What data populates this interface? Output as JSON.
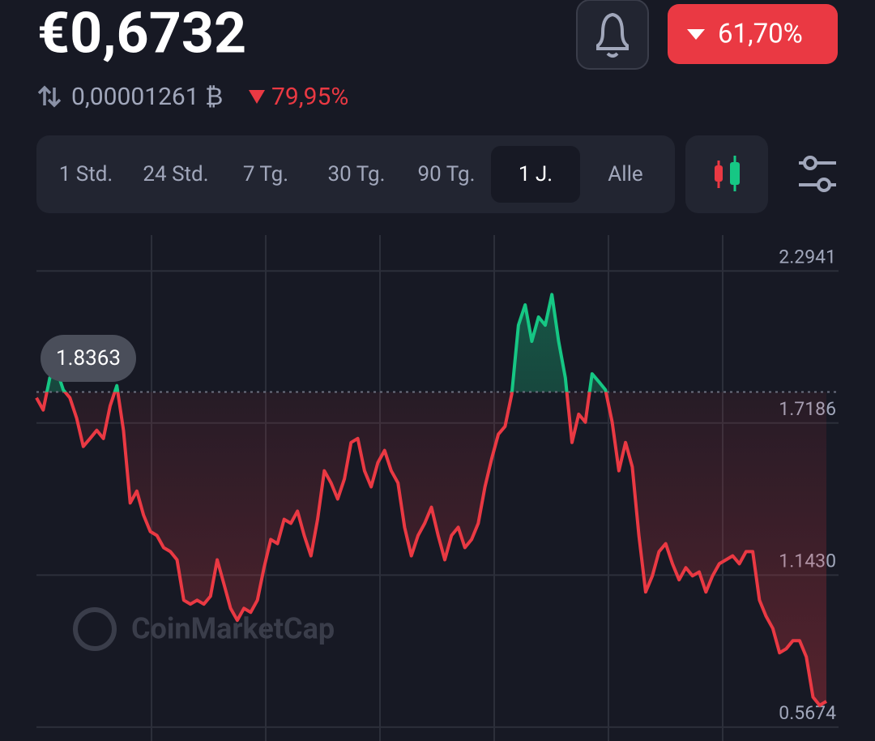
{
  "header": {
    "price": "€0,6732",
    "change": "61,70%",
    "btc_price": "0,00001261 ₿",
    "btc_change": "79,95%"
  },
  "tabs": [
    "1 Std.",
    "24 Std.",
    "7 Tg.",
    "30 Tg.",
    "90 Tg.",
    "1 J.",
    "Alle"
  ],
  "active_tab": 5,
  "chart_data": {
    "type": "line",
    "watermark": "CoinMarketCap",
    "baseline": 1.8363,
    "up_color": "#16c784",
    "down_color": "#ea3943",
    "values": [
      1.814,
      1.768,
      1.89,
      1.921,
      1.844,
      1.814,
      1.737,
      1.63,
      1.66,
      1.691,
      1.66,
      1.783,
      1.86,
      1.691,
      1.416,
      1.461,
      1.37,
      1.308,
      1.293,
      1.247,
      1.232,
      1.201,
      1.048,
      1.033,
      1.048,
      1.033,
      1.063,
      1.201,
      1.109,
      1.017,
      0.972,
      1.017,
      1.002,
      1.048,
      1.171,
      1.278,
      1.262,
      1.354,
      1.339,
      1.385,
      1.293,
      1.216,
      1.354,
      1.538,
      1.492,
      1.431,
      1.507,
      1.645,
      1.66,
      1.538,
      1.477,
      1.569,
      1.615,
      1.538,
      1.492,
      1.324,
      1.216,
      1.293,
      1.339,
      1.4,
      1.293,
      1.201,
      1.293,
      1.324,
      1.247,
      1.278,
      1.339,
      1.477,
      1.584,
      1.676,
      1.706,
      1.829,
      2.089,
      2.166,
      2.028,
      2.12,
      2.089,
      2.205,
      2.028,
      1.89,
      1.645,
      1.752,
      1.722,
      1.905,
      1.875,
      1.844,
      1.722,
      1.538,
      1.645,
      1.553,
      1.293,
      1.079,
      1.14,
      1.232,
      1.262,
      1.186,
      1.125,
      1.171,
      1.14,
      1.155,
      1.079,
      1.14,
      1.186,
      1.201,
      1.216,
      1.186,
      1.232,
      1.232,
      1.048,
      0.987,
      0.941,
      0.849,
      0.864,
      0.895,
      0.895,
      0.834,
      0.681,
      0.65,
      0.665
    ],
    "ylim": [
      0.515,
      2.43
    ],
    "yticks": [
      0.5674,
      {
        "value": 1.143,
        "label": "1.1430"
      },
      1.7186,
      2.2941
    ],
    "grid": true
  }
}
